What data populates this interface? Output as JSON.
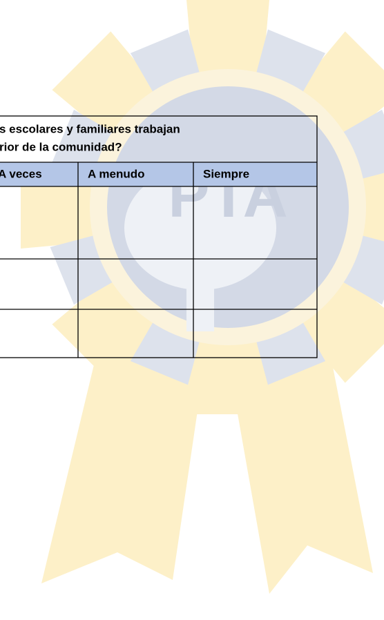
{
  "watermark": "PTA",
  "table": {
    "title_lines": [
      "s escolares y familiares trabajan",
      "rior de la comunidad?"
    ],
    "header": [
      "A veces",
      "A menudo",
      "Siempre"
    ]
  }
}
